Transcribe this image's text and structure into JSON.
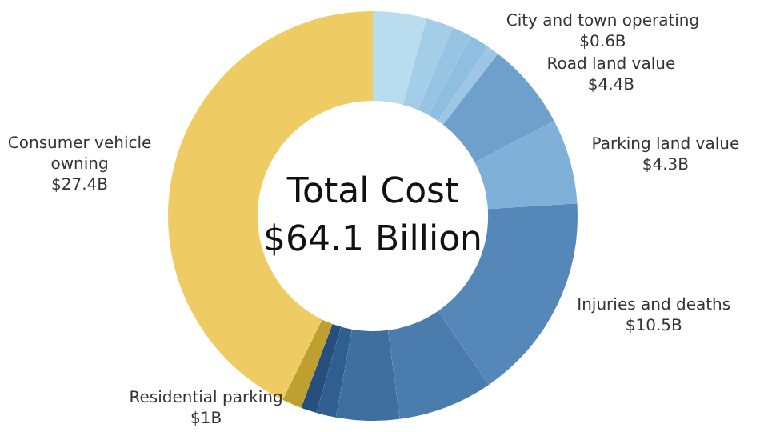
{
  "chart_data": {
    "type": "donut",
    "title": "Total Cost",
    "subtitle": "$64.1 Billion",
    "categories": [
      null,
      null,
      null,
      null,
      "City and town operating",
      "Road land value",
      "Parking land value",
      "Injuries and deaths",
      null,
      null,
      null,
      null,
      "Residential parking",
      "Consumer vehicle owning"
    ],
    "values": [
      2.7,
      1.4,
      1.0,
      1.0,
      0.6,
      4.4,
      4.3,
      10.5,
      4.8,
      3.2,
      1.0,
      0.8,
      1,
      27.4
    ],
    "colors": [
      "#b9dcef",
      "#a4cde8",
      "#98c4e3",
      "#8fbfe0",
      "#9cc6e4",
      "#6fa0cb",
      "#7eb0d8",
      "#5588b8",
      "#4a7cad",
      "#3f6f9f",
      "#2f5f90",
      "#264f7d",
      "#bda030",
      "#efcc63"
    ],
    "value_labels": [
      null,
      null,
      null,
      null,
      "$0.6B",
      "$4.4B",
      "$4.3B",
      "$10.5B",
      null,
      null,
      null,
      null,
      "$1B",
      "$27.4B"
    ],
    "legend": false
  }
}
